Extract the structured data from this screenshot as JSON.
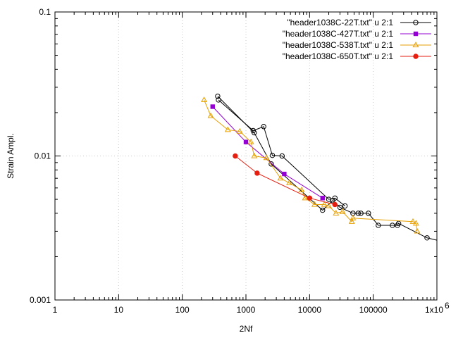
{
  "chart_data": {
    "type": "scatter",
    "xlabel": "2Nf",
    "ylabel": "Strain Ampl.",
    "xscale": "log",
    "yscale": "log",
    "xlim": [
      1,
      1000000
    ],
    "ylim": [
      0.001,
      0.1
    ],
    "grid": true,
    "legend_position": "top-right",
    "x_ticks": [
      {
        "value": 1,
        "label": "1"
      },
      {
        "value": 10,
        "label": "10"
      },
      {
        "value": 100,
        "label": "100"
      },
      {
        "value": 1000,
        "label": "1000"
      },
      {
        "value": 10000,
        "label": "10000"
      },
      {
        "value": 100000,
        "label": "100000"
      },
      {
        "value": 1000000,
        "label": "1x10"
      }
    ],
    "x_tick_exponent": "6",
    "y_ticks": [
      {
        "value": 0.001,
        "label": "0.001"
      },
      {
        "value": 0.01,
        "label": "0.01"
      },
      {
        "value": 0.1,
        "label": "0.1"
      }
    ],
    "series": [
      {
        "name": "\"header1038C-22T.txt\" u 2:1",
        "color": "#000000",
        "marker": "circle-open",
        "x": [
          360,
          1350,
          2500,
          16000,
          23000,
          30000,
          48000,
          58000,
          64000,
          84000,
          120000,
          200000,
          240000,
          250000,
          700000,
          1150000
        ],
        "y": [
          0.026,
          0.0145,
          0.0088,
          0.0042,
          0.0049,
          0.0044,
          0.004,
          0.004,
          0.004,
          0.004,
          0.0033,
          0.0033,
          0.0033,
          0.0034,
          0.0027,
          0.0026
        ],
        "extra_x": [
          370,
          1300,
          1900,
          2600,
          3700,
          20000,
          25000,
          36000
        ],
        "extra_y": [
          0.0245,
          0.015,
          0.016,
          0.0101,
          0.01,
          0.005,
          0.0051,
          0.0045
        ]
      },
      {
        "name": "\"header1038C-427T.txt\" u 2:1",
        "color": "#9400d3",
        "marker": "square-filled",
        "x": [
          300,
          1000,
          4000,
          16000
        ],
        "y": [
          0.022,
          0.0125,
          0.0075,
          0.0051
        ]
      },
      {
        "name": "\"header1038C-538T.txt\" u 2:1",
        "color": "#e69f00",
        "marker": "triangle-open",
        "x": [
          220,
          280,
          520,
          800,
          1200,
          1350,
          2100,
          3500,
          4800,
          7500,
          8500,
          12000,
          17000,
          20000,
          26000,
          33000,
          46000,
          48000,
          420000,
          470000,
          490000
        ],
        "y": [
          0.0245,
          0.019,
          0.0152,
          0.0148,
          0.0125,
          0.01,
          0.0097,
          0.007,
          0.0065,
          0.0058,
          0.0051,
          0.0046,
          0.0046,
          0.0045,
          0.004,
          0.0041,
          0.0035,
          0.0037,
          0.0035,
          0.0034,
          0.003
        ]
      },
      {
        "name": "\"header1038C-650T.txt\" u 2:1",
        "color": "#e51e10",
        "marker": "circle-filled",
        "x": [
          680,
          1500,
          10000,
          25000
        ],
        "y": [
          0.01,
          0.0076,
          0.0051,
          0.0046
        ]
      }
    ]
  }
}
